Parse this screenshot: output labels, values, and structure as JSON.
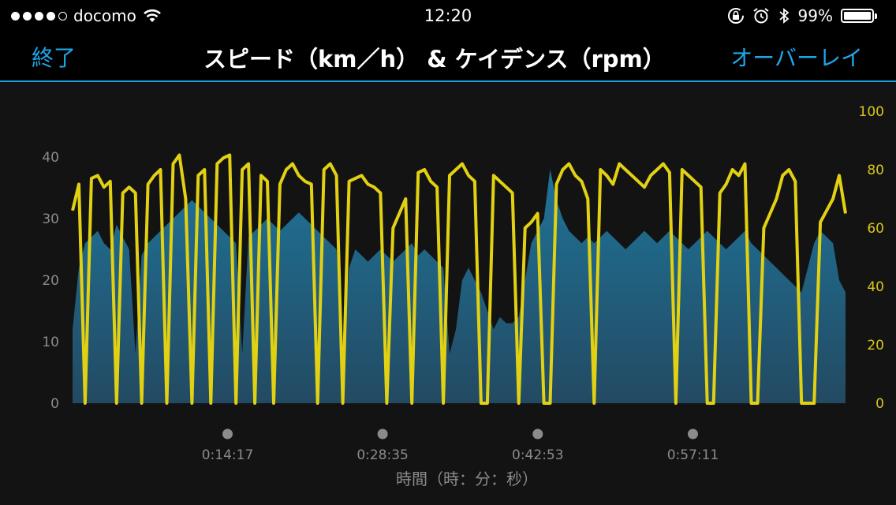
{
  "status_bar": {
    "carrier": "docomo",
    "time": "12:20",
    "battery_percent": "99%",
    "battery_level": 0.99,
    "signal_bars": [
      true,
      true,
      true,
      true,
      false
    ]
  },
  "nav": {
    "done_label": "終了",
    "title": "スピード（km／h）  & ケイデンス（rpm）",
    "overlay_label": "オーバーレイ",
    "accent_color": "#1fa6e8"
  },
  "chart_data": {
    "type": "area",
    "xlabel": "時間（時：分：秒）",
    "x_ticks": [
      "0:14:17",
      "0:28:35",
      "0:42:53",
      "0:57:11"
    ],
    "x_tick_seconds": [
      857,
      1715,
      2573,
      3431
    ],
    "x_range_seconds": [
      0,
      4275
    ],
    "y_left": {
      "unit": "km/h",
      "range": [
        0,
        47.5
      ],
      "ticks": [
        0,
        10,
        20,
        30,
        40
      ],
      "color": "#8b8b8b"
    },
    "y_right": {
      "unit": "rpm",
      "range": [
        0,
        100
      ],
      "ticks": [
        0,
        20,
        40,
        60,
        80,
        100
      ],
      "color": "#d8c61a"
    },
    "series": [
      {
        "kind": "area",
        "axis": "left",
        "color": "#1f6f92",
        "values": [
          12,
          22,
          26,
          27,
          28,
          26,
          25,
          29,
          27,
          25,
          8,
          24,
          26,
          27,
          28,
          29,
          30,
          31,
          32,
          33,
          32,
          31,
          30,
          29,
          28,
          27,
          26,
          8,
          27,
          28,
          29,
          30,
          29,
          28,
          29,
          30,
          31,
          30,
          29,
          28,
          27,
          26,
          25,
          8,
          22,
          25,
          24,
          23,
          24,
          25,
          24,
          23,
          24,
          25,
          26,
          24,
          25,
          24,
          23,
          22,
          8,
          12,
          20,
          22,
          20,
          18,
          15,
          12,
          14,
          13,
          13,
          14,
          20,
          26,
          28,
          30,
          38,
          33,
          30,
          28,
          27,
          26,
          27,
          26,
          27,
          28,
          27,
          26,
          25,
          26,
          27,
          28,
          27,
          26,
          27,
          28,
          27,
          26,
          25,
          26,
          27,
          28,
          27,
          26,
          25,
          26,
          27,
          28,
          26,
          25,
          24,
          23,
          22,
          21,
          20,
          19,
          18,
          22,
          26,
          28,
          27,
          26,
          20,
          18
        ]
      },
      {
        "kind": "line",
        "axis": "right",
        "color": "#e2d112",
        "values": [
          66,
          75,
          0,
          77,
          78,
          74,
          76,
          0,
          72,
          74,
          72,
          0,
          75,
          78,
          80,
          0,
          82,
          85,
          70,
          0,
          78,
          80,
          0,
          82,
          84,
          85,
          0,
          80,
          82,
          0,
          78,
          76,
          0,
          75,
          80,
          82,
          78,
          76,
          75,
          0,
          80,
          82,
          78,
          0,
          76,
          77,
          78,
          75,
          74,
          72,
          0,
          60,
          65,
          70,
          0,
          79,
          80,
          76,
          74,
          0,
          78,
          80,
          82,
          78,
          76,
          0,
          0,
          78,
          76,
          74,
          72,
          0,
          60,
          62,
          65,
          0,
          0,
          75,
          80,
          82,
          78,
          76,
          70,
          0,
          80,
          78,
          75,
          82,
          80,
          78,
          76,
          74,
          78,
          80,
          82,
          79,
          0,
          80,
          78,
          76,
          74,
          0,
          0,
          72,
          75,
          80,
          78,
          82,
          0,
          0,
          60,
          65,
          70,
          78,
          80,
          76,
          0,
          0,
          0,
          62,
          66,
          70,
          78,
          65
        ]
      }
    ]
  }
}
